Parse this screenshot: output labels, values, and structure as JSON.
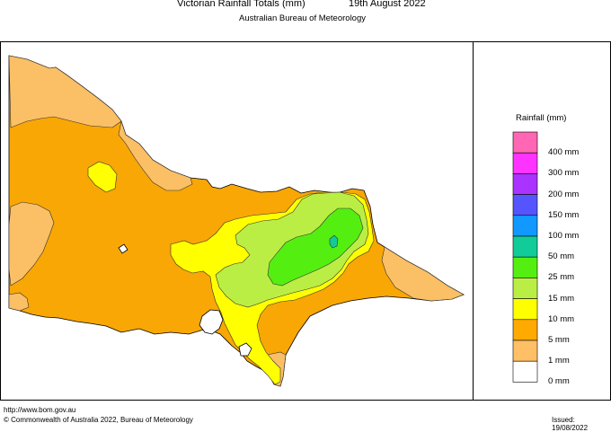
{
  "header": {
    "title": "Victorian Rainfall Totals (mm)",
    "date": "19th August 2022",
    "subtitle": "Australian Bureau of Meteorology"
  },
  "legend": {
    "title": "Rainfall (mm)",
    "items": [
      {
        "label": "400 mm",
        "color": "#ff66b3"
      },
      {
        "label": "300 mm",
        "color": "#ff33ff"
      },
      {
        "label": "200 mm",
        "color": "#aa33ff"
      },
      {
        "label": "150 mm",
        "color": "#5555ff"
      },
      {
        "label": "100 mm",
        "color": "#1199ff"
      },
      {
        "label": "50 mm",
        "color": "#11cc99"
      },
      {
        "label": "25 mm",
        "color": "#55ee11"
      },
      {
        "label": "15 mm",
        "color": "#bbee44"
      },
      {
        "label": "10 mm",
        "color": "#ffff00"
      },
      {
        "label": "5 mm",
        "color": "#ffaa00"
      },
      {
        "label": "1 mm",
        "color": "#ffbf66"
      },
      {
        "label": "0 mm",
        "color": "#ffffff"
      }
    ]
  },
  "map_colors": {
    "1mm": "#fbbf66",
    "5mm": "#f9a705",
    "10mm": "#ffff00",
    "15mm": "#bbee44",
    "25mm": "#55ee11",
    "50mm": "#11cc99"
  },
  "footer": {
    "url": "http://www.bom.gov.au",
    "copyright": "© Commonwealth of Australia 2022, Bureau of Meteorology",
    "issued": "Issued: 19/08/2022"
  }
}
